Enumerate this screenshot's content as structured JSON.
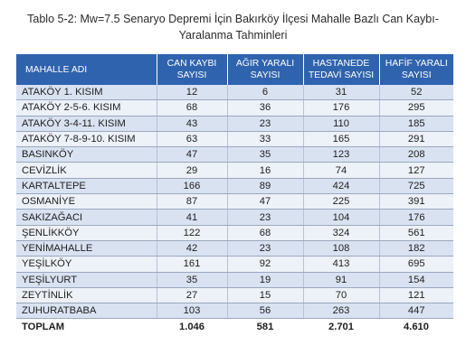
{
  "caption": {
    "line1": "Tablo 5-2: Mw=7.5 Senaryo Depremi İçin Bakırköy İlçesi Mahalle Bazlı Can Kaybı-",
    "line2": "Yaralanma Tahminleri"
  },
  "table": {
    "headers": [
      "MAHALLE ADI",
      "CAN KAYBI SAYISI",
      "AĞIR YARALI SAYISI",
      "HASTANEDE TEDAVİ SAYISI",
      "HAFİF YARALI SAYISI"
    ],
    "rows": [
      [
        "ATAKÖY 1. KISIM",
        "12",
        "6",
        "31",
        "52"
      ],
      [
        "ATAKÖY 2-5-6. KISIM",
        "68",
        "36",
        "176",
        "295"
      ],
      [
        "ATAKÖY 3-4-11. KISIM",
        "43",
        "23",
        "110",
        "185"
      ],
      [
        "ATAKÖY 7-8-9-10. KISIM",
        "63",
        "33",
        "165",
        "291"
      ],
      [
        "BASINKÖY",
        "47",
        "35",
        "123",
        "208"
      ],
      [
        "CEVİZLİK",
        "29",
        "16",
        "74",
        "127"
      ],
      [
        "KARTALTEPE",
        "166",
        "89",
        "424",
        "725"
      ],
      [
        "OSMANİYE",
        "87",
        "47",
        "225",
        "391"
      ],
      [
        "SAKIZAĞACI",
        "41",
        "23",
        "104",
        "176"
      ],
      [
        "ŞENLİKKÖY",
        "122",
        "68",
        "324",
        "561"
      ],
      [
        "YENİMAHALLE",
        "42",
        "23",
        "108",
        "182"
      ],
      [
        "YEŞİLKÖY",
        "161",
        "92",
        "413",
        "695"
      ],
      [
        "YEŞİLYURT",
        "35",
        "19",
        "91",
        "154"
      ],
      [
        "ZEYTİNLİK",
        "27",
        "15",
        "70",
        "121"
      ],
      [
        "ZUHURATBABA",
        "103",
        "56",
        "263",
        "447"
      ]
    ],
    "total": [
      "TOPLAM",
      "1.046",
      "581",
      "2.701",
      "4.610"
    ]
  },
  "colors": {
    "header_bg": "#2f63ad",
    "row_band_dark": "#d9e2f1",
    "row_band_light": "#edf1f8"
  }
}
